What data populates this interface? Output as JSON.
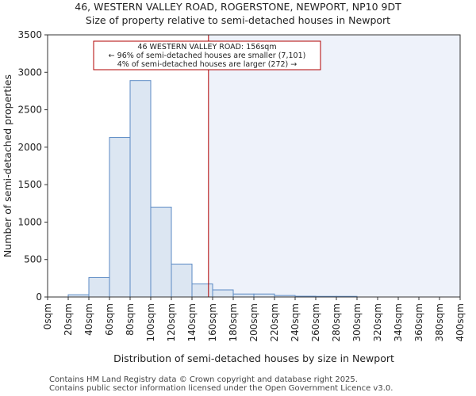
{
  "header": {
    "line1": "46, WESTERN VALLEY ROAD, ROGERSTONE, NEWPORT, NP10 9DT",
    "line2": "Size of property relative to semi-detached houses in Newport"
  },
  "footer": {
    "line1": "Contains HM Land Registry data © Crown copyright and database right 2025.",
    "line2": "Contains public sector information licensed under the Open Government Licence v3.0."
  },
  "chart_data": {
    "type": "bar",
    "title": "Size of property relative to semi-detached houses in Newport",
    "xlabel": "Distribution of semi-detached houses by size in Newport",
    "ylabel": "Number of semi-detached properties",
    "ylim": [
      0,
      3500
    ],
    "yticks": [
      0,
      500,
      1000,
      1500,
      2000,
      2500,
      3000,
      3500
    ],
    "xlim": [
      0,
      400
    ],
    "bin_width": 20,
    "xtick_labels": [
      "0sqm",
      "20sqm",
      "40sqm",
      "60sqm",
      "80sqm",
      "100sqm",
      "120sqm",
      "140sqm",
      "160sqm",
      "180sqm",
      "200sqm",
      "220sqm",
      "240sqm",
      "260sqm",
      "280sqm",
      "300sqm",
      "320sqm",
      "340sqm",
      "360sqm",
      "380sqm",
      "400sqm"
    ],
    "bin_starts": [
      0,
      20,
      40,
      60,
      80,
      100,
      120,
      140,
      160,
      180,
      200,
      220,
      240,
      260,
      280,
      300,
      320,
      340,
      360,
      380
    ],
    "values": [
      0,
      30,
      260,
      2130,
      2890,
      1200,
      440,
      175,
      95,
      40,
      40,
      20,
      10,
      8,
      8,
      0,
      0,
      0,
      0,
      0
    ],
    "property_size": 156,
    "annotation": {
      "line1": "46 WESTERN VALLEY ROAD: 156sqm",
      "line2": "← 96% of semi-detached houses are smaller (7,101)",
      "line3": "4% of semi-detached houses are larger (272) →"
    },
    "colors": {
      "bar_fill": "#dce6f2",
      "bar_stroke": "#5b8ac4",
      "marker_line": "#b00000",
      "shaded_region": "#eef2fa"
    }
  }
}
